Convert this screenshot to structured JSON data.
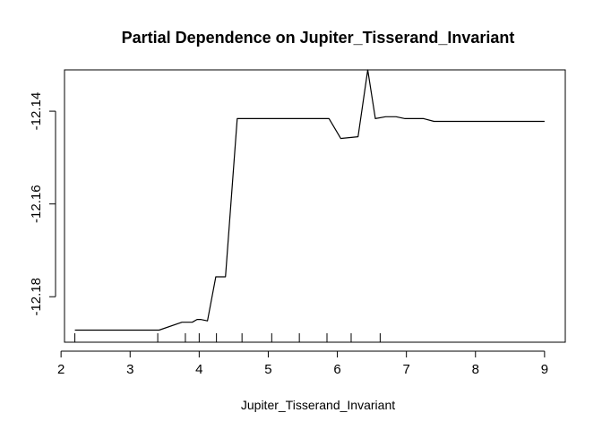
{
  "chart_data": {
    "type": "line",
    "title": "Partial Dependence on  Jupiter_Tisserand_Invariant",
    "xlabel": "Jupiter_Tisserand_Invariant",
    "ylabel": "",
    "xlim": [
      2.05,
      9.3
    ],
    "ylim": [
      -12.1898,
      -12.1311
    ],
    "x_ticks": [
      2,
      3,
      4,
      5,
      6,
      7,
      8,
      9
    ],
    "x_tick_labels": [
      "2",
      "3",
      "4",
      "5",
      "6",
      "7",
      "8",
      "9"
    ],
    "y_ticks": [
      -12.18,
      -12.16,
      -12.14
    ],
    "y_tick_labels": [
      "-12.18",
      "-12.16",
      "-12.14"
    ],
    "grid": false,
    "line_color": "#000000",
    "series": [
      {
        "x": [
          2.2,
          3.42,
          3.75,
          3.9,
          3.97,
          4.02,
          4.12,
          4.24,
          4.38,
          4.55,
          4.9,
          5.2,
          5.5,
          5.88,
          6.05,
          6.3,
          6.44,
          6.55,
          6.7,
          6.85,
          6.98,
          7.25,
          7.4,
          8.0,
          9.0
        ],
        "y": [
          -12.1872,
          -12.1872,
          -12.1855,
          -12.1855,
          -12.1849,
          -12.1849,
          -12.1852,
          -12.1757,
          -12.1757,
          -12.1416,
          -12.1416,
          -12.1416,
          -12.1416,
          -12.1416,
          -12.1459,
          -12.1455,
          -12.1311,
          -12.1416,
          -12.1412,
          -12.1412,
          -12.1416,
          -12.1416,
          -12.1422,
          -12.1422,
          -12.1422
        ]
      }
    ],
    "rug": [
      2.2,
      3.4,
      3.8,
      4.0,
      4.25,
      4.62,
      5.05,
      5.45,
      5.85,
      6.2,
      6.62
    ]
  }
}
